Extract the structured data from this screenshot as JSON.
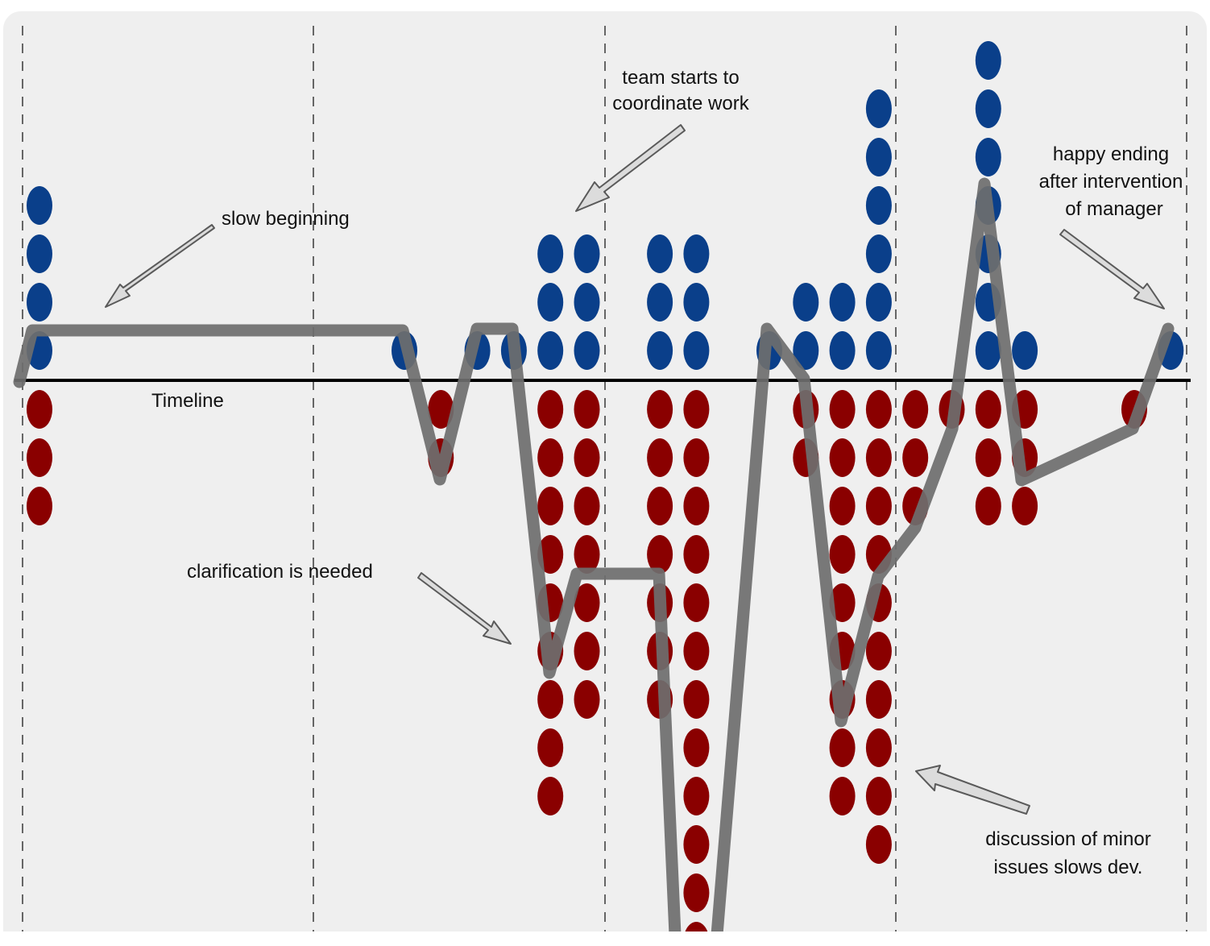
{
  "colors": {
    "background": "#efefef",
    "positive_dot": "#0a3f8a",
    "negative_dot": "#8a0000",
    "trend_line": "#6e6e6e",
    "timeline": "#000000",
    "divider": "#666666",
    "arrow_fill": "#dcdcdc",
    "arrow_stroke": "#5a5a5a"
  },
  "timeline_label": "Timeline",
  "annotations": {
    "slow_beginning": "slow beginning",
    "team_coordinate": [
      "team starts to",
      "coordinate work"
    ],
    "clarification": "clarification is needed",
    "happy_ending": [
      "happy ending",
      "after intervention",
      "of manager"
    ],
    "discussion": [
      "discussion of minor",
      "issues slows dev."
    ]
  },
  "time_slots": [
    {
      "slot": 0,
      "positive": 4,
      "negative": 3
    },
    {
      "slot": 10,
      "positive": 1,
      "negative": 0
    },
    {
      "slot": 11,
      "positive": 0,
      "negative": 2
    },
    {
      "slot": 12,
      "positive": 1,
      "negative": 0
    },
    {
      "slot": 13,
      "positive": 1,
      "negative": 0
    },
    {
      "slot": 14,
      "positive": 3,
      "negative": 9
    },
    {
      "slot": 15,
      "positive": 3,
      "negative": 7
    },
    {
      "slot": 17,
      "positive": 3,
      "negative": 7
    },
    {
      "slot": 18,
      "positive": 3,
      "negative": 12
    },
    {
      "slot": 20,
      "positive": 1,
      "negative": 0
    },
    {
      "slot": 21,
      "positive": 2,
      "negative": 2
    },
    {
      "slot": 22,
      "positive": 2,
      "negative": 9
    },
    {
      "slot": 23,
      "positive": 6,
      "negative": 10
    },
    {
      "slot": 24,
      "positive": 0,
      "negative": 3
    },
    {
      "slot": 25,
      "positive": 0,
      "negative": 1
    },
    {
      "slot": 26,
      "positive": 7,
      "negative": 3
    },
    {
      "slot": 27,
      "positive": 1,
      "negative": 3
    },
    {
      "slot": 30,
      "positive": 0,
      "negative": 1
    },
    {
      "slot": 31,
      "positive": 1,
      "negative": 0
    }
  ]
}
